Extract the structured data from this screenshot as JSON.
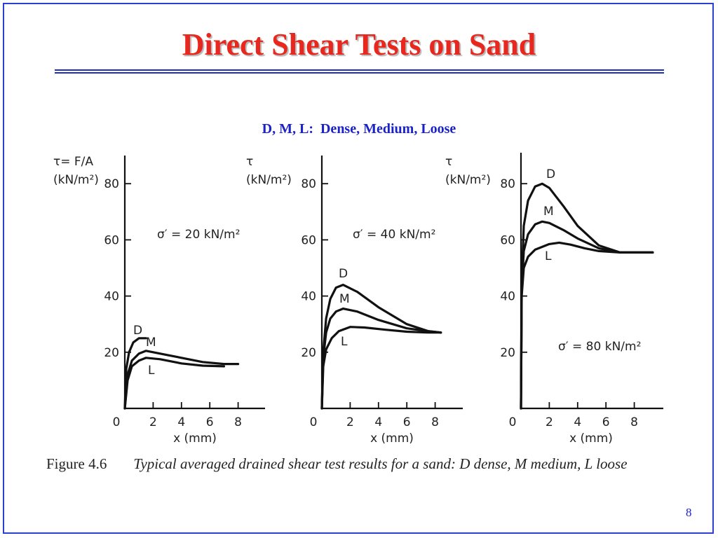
{
  "slide": {
    "title": "Direct Shear Tests on Sand",
    "subtitle": "D, M, L:  Dense, Medium, Loose",
    "caption_lead": "Figure 4.6",
    "caption_body": "Typical averaged drained shear test results for a sand: D dense, M medium, L loose",
    "page_number": "8",
    "colors": {
      "title": "#e8281e",
      "accent": "#1b22c8",
      "frame": "#2b3fd6"
    }
  },
  "chart_data": [
    {
      "type": "line",
      "ylabel_line1": "τ= F/A",
      "ylabel_line2": "(kN/m²)",
      "xlabel": "x (mm)",
      "annotation": "σ′ = 20 kN/m²",
      "x_ticks": [
        "0",
        "2",
        "4",
        "6",
        "8"
      ],
      "y_ticks": [
        "20",
        "40",
        "60",
        "80"
      ],
      "xlim": [
        0,
        10
      ],
      "ylim": [
        0,
        90
      ],
      "series": [
        {
          "name": "D",
          "x": [
            0,
            0.1,
            0.3,
            0.6,
            1.0,
            1.5
          ],
          "y": [
            0,
            14,
            20,
            23.5,
            25,
            25
          ]
        },
        {
          "name": "M",
          "x": [
            0,
            0.2,
            0.5,
            1.0,
            1.5,
            2.5,
            4,
            5.5,
            7,
            8
          ],
          "y": [
            0,
            12,
            17,
            19.5,
            20.5,
            19.5,
            18,
            16.5,
            15.8,
            15.8
          ]
        },
        {
          "name": "L",
          "x": [
            0,
            0.2,
            0.5,
            1.0,
            1.5,
            2.5,
            4,
            5.5,
            7
          ],
          "y": [
            0,
            10,
            15,
            17,
            18,
            17.5,
            16,
            15.2,
            15
          ]
        }
      ]
    },
    {
      "type": "line",
      "ylabel_line1": "τ",
      "ylabel_line2": "(kN/m²)",
      "xlabel": "x (mm)",
      "annotation": "σ′ = 40 kN/m²",
      "x_ticks": [
        "0",
        "2",
        "4",
        "6",
        "8"
      ],
      "y_ticks": [
        "20",
        "40",
        "60",
        "80"
      ],
      "xlim": [
        0,
        10
      ],
      "ylim": [
        0,
        90
      ],
      "series": [
        {
          "name": "D",
          "x": [
            0,
            0.1,
            0.3,
            0.6,
            1.0,
            1.5,
            2.5,
            4,
            6,
            7.5,
            8.4
          ],
          "y": [
            0,
            20,
            32,
            39,
            43,
            44,
            41.5,
            36,
            30,
            27.5,
            27
          ]
        },
        {
          "name": "M",
          "x": [
            0,
            0.1,
            0.3,
            0.6,
            1.0,
            1.5,
            2.5,
            4,
            6,
            7.5,
            8.4
          ],
          "y": [
            0,
            18,
            27,
            32,
            34.5,
            35.5,
            34.5,
            31.5,
            28.5,
            27.5,
            27
          ]
        },
        {
          "name": "L",
          "x": [
            0,
            0.1,
            0.3,
            0.7,
            1.2,
            2.0,
            3.0,
            4.5,
            6,
            7.5,
            8.4
          ],
          "y": [
            0,
            15,
            21,
            25,
            27.5,
            29,
            28.8,
            28,
            27.3,
            27,
            27
          ]
        }
      ]
    },
    {
      "type": "line",
      "ylabel_line1": "τ",
      "ylabel_line2": "(kN/m²)",
      "xlabel": "x (mm)",
      "annotation": "σ′ = 80 kN/m²",
      "x_ticks": [
        "0",
        "2",
        "4",
        "6",
        "8"
      ],
      "y_ticks": [
        "20",
        "40",
        "60",
        "80"
      ],
      "xlim": [
        0,
        10
      ],
      "ylim": [
        0,
        90
      ],
      "series": [
        {
          "name": "D",
          "x": [
            0,
            0.05,
            0.2,
            0.5,
            1.0,
            1.5,
            2.0,
            3.0,
            4.0,
            5.5,
            7,
            9.3
          ],
          "y": [
            0,
            45,
            65,
            74,
            79,
            80,
            78.5,
            72,
            65,
            58,
            55.5,
            55.5
          ]
        },
        {
          "name": "M",
          "x": [
            0,
            0.05,
            0.2,
            0.5,
            1.0,
            1.5,
            2.0,
            3.0,
            4.0,
            5.5,
            7,
            9.3
          ],
          "y": [
            0,
            42,
            56,
            62,
            65.5,
            66.5,
            66,
            63.5,
            60.5,
            57,
            55.5,
            55.5
          ]
        },
        {
          "name": "L",
          "x": [
            0,
            0.05,
            0.2,
            0.5,
            1.0,
            1.5,
            2.0,
            2.7,
            3.5,
            4.5,
            5.5,
            7,
            9.3
          ],
          "y": [
            0,
            40,
            50,
            54,
            56.5,
            57.5,
            58.5,
            59,
            58.3,
            57,
            56,
            55.5,
            55.5
          ]
        }
      ]
    }
  ]
}
